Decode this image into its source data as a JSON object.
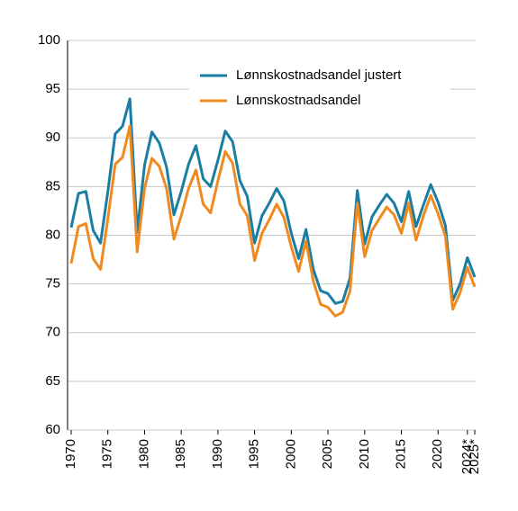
{
  "chart_data": {
    "type": "line",
    "x": [
      1970,
      1971,
      1972,
      1973,
      1974,
      1975,
      1976,
      1977,
      1978,
      1979,
      1980,
      1981,
      1982,
      1983,
      1984,
      1985,
      1986,
      1987,
      1988,
      1989,
      1990,
      1991,
      1992,
      1993,
      1994,
      1995,
      1996,
      1997,
      1998,
      1999,
      2000,
      2001,
      2002,
      2003,
      2004,
      2005,
      2006,
      2007,
      2008,
      2009,
      2010,
      2011,
      2012,
      2013,
      2014,
      2015,
      2016,
      2017,
      2018,
      2019,
      2020,
      2021,
      2022,
      2023,
      2024,
      2025
    ],
    "series": [
      {
        "name": "Lønnskostnadsandel justert",
        "color": "#1a7ea3",
        "values": [
          80.8,
          84.3,
          84.5,
          80.5,
          79.2,
          84.5,
          90.4,
          91.2,
          94.0,
          80.3,
          87.2,
          90.6,
          89.5,
          87.0,
          82.1,
          84.5,
          87.3,
          89.2,
          85.8,
          85.0,
          87.7,
          90.7,
          89.6,
          85.6,
          84.0,
          79.2,
          82.0,
          83.3,
          84.8,
          83.5,
          80.2,
          77.6,
          80.6,
          76.5,
          74.3,
          74.0,
          73.0,
          73.2,
          75.6,
          84.6,
          79.1,
          81.9,
          83.1,
          84.2,
          83.3,
          81.4,
          84.5,
          80.9,
          83.1,
          85.2,
          83.4,
          81.0,
          73.3,
          75.0,
          77.7,
          75.7
        ]
      },
      {
        "name": "Lønnskostnadsandel",
        "color": "#f08a1e",
        "values": [
          77.1,
          80.9,
          81.2,
          77.6,
          76.5,
          81.7,
          87.3,
          88.0,
          91.2,
          78.3,
          84.8,
          87.9,
          87.1,
          84.8,
          79.6,
          82.0,
          84.8,
          86.7,
          83.2,
          82.3,
          85.6,
          88.6,
          87.4,
          83.2,
          82.0,
          77.4,
          80.2,
          81.6,
          83.2,
          81.8,
          78.8,
          76.3,
          79.4,
          75.3,
          72.9,
          72.6,
          71.7,
          72.1,
          74.3,
          83.3,
          77.8,
          80.5,
          81.7,
          82.9,
          82.1,
          80.2,
          83.3,
          79.5,
          82.0,
          84.1,
          82.2,
          79.9,
          72.4,
          74.1,
          76.7,
          74.7
        ]
      }
    ],
    "xlim": [
      1970,
      2025
    ],
    "xticks": [
      1970,
      1975,
      1980,
      1985,
      1990,
      1995,
      2000,
      2005,
      2010,
      2015,
      2020,
      {
        "value": 2024,
        "label": "2024*"
      },
      {
        "value": 2025,
        "label": "2025*"
      }
    ],
    "ylim": [
      60,
      100
    ],
    "yticks": [
      60,
      65,
      70,
      75,
      80,
      85,
      90,
      95,
      100
    ],
    "grid": true,
    "legend": "upper center"
  }
}
